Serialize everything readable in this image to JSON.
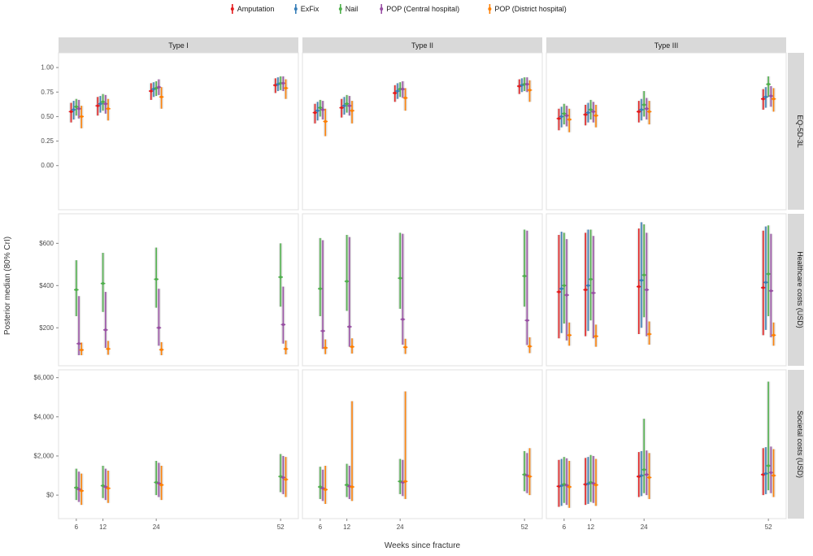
{
  "chart_data": {
    "type": "scatter",
    "subtype": "pointrange-faceted",
    "x_label": "Weeks since fracture",
    "y_label": "Posterior median (80% CrI)",
    "legend_position": "top",
    "grid": false,
    "weeks": [
      6,
      12,
      24,
      52
    ],
    "week_labels": [
      "6",
      "12",
      "24",
      "52"
    ],
    "col_facets": [
      "Type I",
      "Type II",
      "Type III"
    ],
    "row_facets": [
      {
        "label": "EQ-5D-3L",
        "ticks": [
          0,
          0.25,
          0.5,
          0.75,
          1.0
        ],
        "tick_labels": [
          "0.00",
          "0.25",
          "0.50",
          "0.75",
          "1.00"
        ],
        "ylim": [
          -0.45,
          1.15
        ]
      },
      {
        "label": "Healthcare costs (USD)",
        "ticks": [
          200,
          400,
          600
        ],
        "tick_labels": [
          "$200",
          "$400",
          "$600"
        ],
        "ylim": [
          20,
          740
        ]
      },
      {
        "label": "Societal costs (USD)",
        "ticks": [
          0,
          2000,
          4000,
          6000
        ],
        "tick_labels": [
          "$0",
          "$2,000",
          "$4,000",
          "$6,000"
        ],
        "ylim": [
          -1200,
          6400
        ]
      }
    ],
    "series": [
      {
        "name": "Amputation",
        "color": "#e41a1c"
      },
      {
        "name": "ExFix",
        "color": "#377eb8"
      },
      {
        "name": "Nail",
        "color": "#4daf4a"
      },
      {
        "name": "POP (Central hospital)",
        "color": "#984ea3"
      },
      {
        "name": "POP (District hospital)",
        "color": "#ff7f00"
      }
    ],
    "interval_band_color": "#bbbbbb",
    "panels": [
      [
        {
          "values": [
            [
              [
                0.55,
                0.44,
                0.64
              ],
              [
                0.61,
                0.51,
                0.7
              ],
              [
                0.76,
                0.67,
                0.84
              ],
              [
                0.82,
                0.74,
                0.89
              ]
            ],
            [
              [
                0.57,
                0.47,
                0.66
              ],
              [
                0.63,
                0.54,
                0.71
              ],
              [
                0.78,
                0.7,
                0.85
              ],
              [
                0.83,
                0.76,
                0.9
              ]
            ],
            [
              [
                0.6,
                0.51,
                0.68
              ],
              [
                0.65,
                0.56,
                0.73
              ],
              [
                0.79,
                0.71,
                0.86
              ],
              [
                0.84,
                0.77,
                0.91
              ]
            ],
            [
              [
                0.58,
                0.48,
                0.67
              ],
              [
                0.63,
                0.53,
                0.72
              ],
              [
                0.8,
                0.72,
                0.88
              ],
              [
                0.84,
                0.76,
                0.91
              ]
            ],
            [
              [
                0.5,
                0.38,
                0.61
              ],
              [
                0.58,
                0.46,
                0.68
              ],
              [
                0.7,
                0.58,
                0.8
              ],
              [
                0.79,
                0.68,
                0.88
              ]
            ]
          ]
        },
        {
          "values": [
            [
              [
                0.54,
                0.43,
                0.63
              ],
              [
                0.59,
                0.49,
                0.68
              ],
              [
                0.74,
                0.65,
                0.82
              ],
              [
                0.81,
                0.73,
                0.88
              ]
            ],
            [
              [
                0.56,
                0.46,
                0.65
              ],
              [
                0.61,
                0.52,
                0.7
              ],
              [
                0.76,
                0.68,
                0.84
              ],
              [
                0.82,
                0.75,
                0.89
              ]
            ],
            [
              [
                0.59,
                0.5,
                0.67
              ],
              [
                0.63,
                0.54,
                0.72
              ],
              [
                0.78,
                0.7,
                0.85
              ],
              [
                0.83,
                0.76,
                0.9
              ]
            ],
            [
              [
                0.57,
                0.47,
                0.66
              ],
              [
                0.61,
                0.51,
                0.71
              ],
              [
                0.78,
                0.69,
                0.86
              ],
              [
                0.83,
                0.75,
                0.9
              ]
            ],
            [
              [
                0.45,
                0.3,
                0.58
              ],
              [
                0.56,
                0.43,
                0.66
              ],
              [
                0.69,
                0.56,
                0.79
              ],
              [
                0.77,
                0.65,
                0.87
              ]
            ]
          ]
        },
        {
          "values": [
            [
              [
                0.48,
                0.36,
                0.58
              ],
              [
                0.52,
                0.41,
                0.62
              ],
              [
                0.55,
                0.44,
                0.66
              ],
              [
                0.68,
                0.57,
                0.78
              ]
            ],
            [
              [
                0.5,
                0.39,
                0.6
              ],
              [
                0.54,
                0.44,
                0.64
              ],
              [
                0.57,
                0.46,
                0.68
              ],
              [
                0.7,
                0.59,
                0.8
              ]
            ],
            [
              [
                0.53,
                0.42,
                0.63
              ],
              [
                0.57,
                0.47,
                0.67
              ],
              [
                0.62,
                0.5,
                0.76
              ],
              [
                0.83,
                0.7,
                0.91
              ]
            ],
            [
              [
                0.51,
                0.4,
                0.61
              ],
              [
                0.55,
                0.44,
                0.65
              ],
              [
                0.58,
                0.47,
                0.69
              ],
              [
                0.71,
                0.6,
                0.81
              ]
            ],
            [
              [
                0.47,
                0.34,
                0.58
              ],
              [
                0.51,
                0.39,
                0.62
              ],
              [
                0.55,
                0.42,
                0.66
              ],
              [
                0.68,
                0.55,
                0.79
              ]
            ]
          ]
        }
      ],
      [
        {
          "values": [
            [
              null,
              null,
              null,
              null
            ],
            [
              null,
              null,
              null,
              null
            ],
            [
              [
                380,
                255,
                520
              ],
              [
                410,
                275,
                555
              ],
              [
                430,
                295,
                580
              ],
              [
                440,
                300,
                600
              ]
            ],
            [
              [
                125,
                70,
                350
              ],
              [
                190,
                105,
                370
              ],
              [
                200,
                115,
                385
              ],
              [
                215,
                125,
                395
              ]
            ],
            [
              [
                95,
                70,
                130
              ],
              [
                100,
                72,
                138
              ],
              [
                96,
                70,
                132
              ],
              [
                100,
                74,
                140
              ]
            ]
          ]
        },
        {
          "values": [
            [
              null,
              null,
              null,
              null
            ],
            [
              null,
              null,
              null,
              null
            ],
            [
              [
                385,
                255,
                625
              ],
              [
                420,
                280,
                640
              ],
              [
                435,
                290,
                650
              ],
              [
                445,
                300,
                665
              ]
            ],
            [
              [
                185,
                100,
                615
              ],
              [
                205,
                110,
                630
              ],
              [
                240,
                120,
                645
              ],
              [
                235,
                118,
                660
              ]
            ],
            [
              [
                105,
                75,
                145
              ],
              [
                110,
                78,
                150
              ],
              [
                108,
                76,
                148
              ],
              [
                112,
                80,
                155
              ]
            ]
          ]
        },
        {
          "values": [
            [
              [
                370,
                150,
                640
              ],
              [
                380,
                160,
                650
              ],
              [
                395,
                170,
                670
              ],
              [
                390,
                165,
                660
              ]
            ],
            [
              [
                385,
                175,
                655
              ],
              [
                400,
                185,
                665
              ],
              [
                425,
                200,
                700
              ],
              [
                415,
                190,
                680
              ]
            ],
            [
              [
                400,
                220,
                650
              ],
              [
                430,
                235,
                665
              ],
              [
                450,
                250,
                690
              ],
              [
                455,
                255,
                685
              ]
            ],
            [
              [
                355,
                140,
                620
              ],
              [
                365,
                150,
                635
              ],
              [
                380,
                160,
                650
              ],
              [
                375,
                155,
                645
              ]
            ],
            [
              [
                165,
                115,
                225
              ],
              [
                160,
                110,
                215
              ],
              [
                170,
                120,
                230
              ],
              [
                165,
                115,
                225
              ]
            ]
          ]
        }
      ],
      [
        {
          "values": [
            [
              null,
              null,
              null,
              null
            ],
            [
              null,
              null,
              null,
              null
            ],
            [
              [
                380,
                -250,
                1350
              ],
              [
                480,
                -150,
                1500
              ],
              [
                650,
                0,
                1750
              ],
              [
                950,
                150,
                2100
              ]
            ],
            [
              [
                300,
                -350,
                1200
              ],
              [
                420,
                -250,
                1350
              ],
              [
                600,
                -100,
                1650
              ],
              [
                900,
                50,
                2000
              ]
            ],
            [
              [
                220,
                -500,
                1100
              ],
              [
                350,
                -400,
                1250
              ],
              [
                520,
                -250,
                1500
              ],
              [
                800,
                -100,
                1950
              ]
            ]
          ]
        },
        {
          "values": [
            [
              null,
              null,
              null,
              null
            ],
            [
              null,
              null,
              null,
              null
            ],
            [
              [
                420,
                -200,
                1450
              ],
              [
                520,
                -100,
                1600
              ],
              [
                700,
                50,
                1850
              ],
              [
                1050,
                200,
                2250
              ]
            ],
            [
              [
                350,
                -300,
                1300
              ],
              [
                450,
                -200,
                1500
              ],
              [
                650,
                -50,
                1800
              ],
              [
                1000,
                100,
                2150
              ]
            ],
            [
              [
                280,
                -450,
                1500
              ],
              [
                420,
                -300,
                4800
              ],
              [
                700,
                -200,
                5300
              ],
              [
                950,
                0,
                2400
              ]
            ]
          ]
        },
        {
          "values": [
            [
              [
                450,
                -600,
                1800
              ],
              [
                550,
                -500,
                1900
              ],
              [
                950,
                -100,
                2200
              ],
              [
                1050,
                0,
                2400
              ]
            ],
            [
              [
                480,
                -550,
                1850
              ],
              [
                580,
                -450,
                1950
              ],
              [
                1000,
                -50,
                2250
              ],
              [
                1100,
                50,
                2450
              ]
            ],
            [
              [
                550,
                -400,
                1950
              ],
              [
                650,
                -350,
                2050
              ],
              [
                1300,
                100,
                3900
              ],
              [
                1500,
                250,
                5800
              ]
            ],
            [
              [
                500,
                -500,
                1880
              ],
              [
                600,
                -400,
                2000
              ],
              [
                1050,
                0,
                2280
              ],
              [
                1150,
                100,
                2480
              ]
            ],
            [
              [
                420,
                -650,
                1750
              ],
              [
                520,
                -550,
                1850
              ],
              [
                900,
                -200,
                2150
              ],
              [
                1000,
                -100,
                2350
              ]
            ]
          ]
        }
      ]
    ],
    "style": {
      "strip_fill": "#d9d9d9",
      "panel_fill": "#ffffff",
      "panel_border": "#e0e0e0",
      "tick_text_color": "#4d4d4d",
      "strip_text_color": "#1a1a1a",
      "axis_title_color": "#333333"
    }
  }
}
